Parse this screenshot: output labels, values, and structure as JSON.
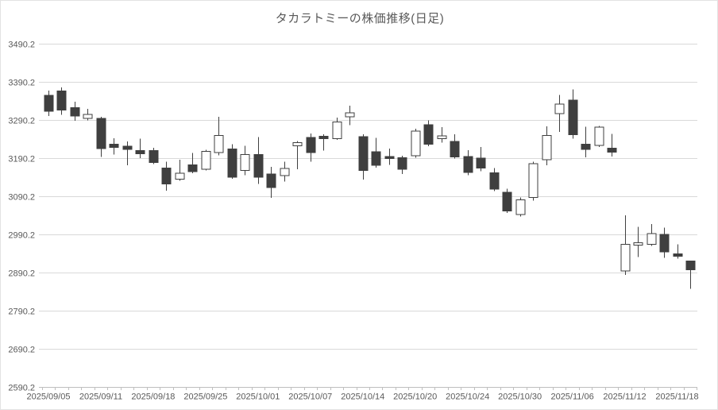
{
  "chart_data": {
    "type": "candlestick",
    "title": "タカラトミーの株価推移(日足)",
    "legend_position": "none",
    "grid": "horizontal",
    "y_axis": {
      "min": 2590.2,
      "max": 3490.2,
      "step": 100,
      "tick_labels": [
        "3490.2",
        "3390.2",
        "3290.2",
        "3190.2",
        "3090.2",
        "2990.2",
        "2890.2",
        "2790.2",
        "2690.2",
        "2590.2"
      ]
    },
    "x_axis": {
      "label_interval": 4,
      "tick_labels": [
        "2025/09/05",
        "2025/09/11",
        "2025/09/18",
        "2025/09/25",
        "2025/10/01",
        "2025/10/07",
        "2025/10/14",
        "2025/10/20",
        "2025/10/24",
        "2025/10/30",
        "2025/11/06",
        "2025/11/12",
        "2025/11/18"
      ]
    },
    "colors": {
      "up_fill": "#ffffff",
      "down_fill": "#3f3f3f",
      "candle_stroke": "#3f3f3f",
      "grid": "#d9d9d9",
      "axis": "#bfbfbf",
      "label": "#595959",
      "title": "#595959",
      "background": "#ffffff"
    },
    "candles": [
      {
        "date": "2025/09/05",
        "open": 3354,
        "high": 3366,
        "low": 3300,
        "close": 3312
      },
      {
        "date": "2025/09/08",
        "open": 3365,
        "high": 3375,
        "low": 3303,
        "close": 3315
      },
      {
        "date": "2025/09/09",
        "open": 3322,
        "high": 3337,
        "low": 3287,
        "close": 3300
      },
      {
        "date": "2025/09/10",
        "open": 3294,
        "high": 3319,
        "low": 3288,
        "close": 3304
      },
      {
        "date": "2025/09/11",
        "open": 3294,
        "high": 3298,
        "low": 3193,
        "close": 3214
      },
      {
        "date": "2025/09/12",
        "open": 3226,
        "high": 3242,
        "low": 3199,
        "close": 3218
      },
      {
        "date": "2025/09/16",
        "open": 3221,
        "high": 3233,
        "low": 3171,
        "close": 3212
      },
      {
        "date": "2025/09/17",
        "open": 3209,
        "high": 3240,
        "low": 3190,
        "close": 3201
      },
      {
        "date": "2025/09/18",
        "open": 3209,
        "high": 3217,
        "low": 3174,
        "close": 3178
      },
      {
        "date": "2025/09/19",
        "open": 3164,
        "high": 3180,
        "low": 3104,
        "close": 3122
      },
      {
        "date": "2025/09/22",
        "open": 3134,
        "high": 3185,
        "low": 3130,
        "close": 3150
      },
      {
        "date": "2025/09/24",
        "open": 3172,
        "high": 3203,
        "low": 3150,
        "close": 3154
      },
      {
        "date": "2025/09/25",
        "open": 3160,
        "high": 3211,
        "low": 3157,
        "close": 3207
      },
      {
        "date": "2025/09/26",
        "open": 3204,
        "high": 3298,
        "low": 3197,
        "close": 3249
      },
      {
        "date": "2025/09/29",
        "open": 3213,
        "high": 3226,
        "low": 3135,
        "close": 3140
      },
      {
        "date": "2025/09/30",
        "open": 3157,
        "high": 3222,
        "low": 3145,
        "close": 3199
      },
      {
        "date": "2025/10/01",
        "open": 3199,
        "high": 3245,
        "low": 3122,
        "close": 3140
      },
      {
        "date": "2025/10/02",
        "open": 3148,
        "high": 3167,
        "low": 3085,
        "close": 3112
      },
      {
        "date": "2025/10/03",
        "open": 3144,
        "high": 3180,
        "low": 3128,
        "close": 3162
      },
      {
        "date": "2025/10/06",
        "open": 3222,
        "high": 3234,
        "low": 3160,
        "close": 3230
      },
      {
        "date": "2025/10/07",
        "open": 3244,
        "high": 3254,
        "low": 3180,
        "close": 3204
      },
      {
        "date": "2025/10/08",
        "open": 3247,
        "high": 3252,
        "low": 3209,
        "close": 3240
      },
      {
        "date": "2025/10/09",
        "open": 3240,
        "high": 3296,
        "low": 3237,
        "close": 3284
      },
      {
        "date": "2025/10/10",
        "open": 3298,
        "high": 3327,
        "low": 3276,
        "close": 3308
      },
      {
        "date": "2025/10/14",
        "open": 3246,
        "high": 3252,
        "low": 3133,
        "close": 3157
      },
      {
        "date": "2025/10/15",
        "open": 3206,
        "high": 3243,
        "low": 3165,
        "close": 3171
      },
      {
        "date": "2025/10/16",
        "open": 3194,
        "high": 3214,
        "low": 3172,
        "close": 3188
      },
      {
        "date": "2025/10/17",
        "open": 3191,
        "high": 3196,
        "low": 3148,
        "close": 3160
      },
      {
        "date": "2025/10/20",
        "open": 3196,
        "high": 3267,
        "low": 3191,
        "close": 3260
      },
      {
        "date": "2025/10/21",
        "open": 3277,
        "high": 3288,
        "low": 3221,
        "close": 3226
      },
      {
        "date": "2025/10/22",
        "open": 3240,
        "high": 3271,
        "low": 3230,
        "close": 3248
      },
      {
        "date": "2025/10/23",
        "open": 3233,
        "high": 3252,
        "low": 3188,
        "close": 3193
      },
      {
        "date": "2025/10/24",
        "open": 3194,
        "high": 3210,
        "low": 3145,
        "close": 3152
      },
      {
        "date": "2025/10/27",
        "open": 3189,
        "high": 3219,
        "low": 3155,
        "close": 3164
      },
      {
        "date": "2025/10/28",
        "open": 3151,
        "high": 3164,
        "low": 3103,
        "close": 3108
      },
      {
        "date": "2025/10/29",
        "open": 3100,
        "high": 3109,
        "low": 3046,
        "close": 3051
      },
      {
        "date": "2025/10/30",
        "open": 3042,
        "high": 3086,
        "low": 3037,
        "close": 3080
      },
      {
        "date": "2025/10/31",
        "open": 3086,
        "high": 3180,
        "low": 3078,
        "close": 3175
      },
      {
        "date": "2025/11/04",
        "open": 3185,
        "high": 3273,
        "low": 3171,
        "close": 3249
      },
      {
        "date": "2025/11/05",
        "open": 3306,
        "high": 3355,
        "low": 3258,
        "close": 3331
      },
      {
        "date": "2025/11/06",
        "open": 3341,
        "high": 3369,
        "low": 3240,
        "close": 3251
      },
      {
        "date": "2025/11/07",
        "open": 3226,
        "high": 3272,
        "low": 3192,
        "close": 3212
      },
      {
        "date": "2025/11/10",
        "open": 3223,
        "high": 3274,
        "low": 3219,
        "close": 3271
      },
      {
        "date": "2025/11/11",
        "open": 3216,
        "high": 3253,
        "low": 3194,
        "close": 3205
      },
      {
        "date": "2025/11/12",
        "open": 2894,
        "high": 3040,
        "low": 2884,
        "close": 2964
      },
      {
        "date": "2025/11/13",
        "open": 2962,
        "high": 3010,
        "low": 2930,
        "close": 2968
      },
      {
        "date": "2025/11/14",
        "open": 2964,
        "high": 3017,
        "low": 2960,
        "close": 2992
      },
      {
        "date": "2025/11/17",
        "open": 2990,
        "high": 3007,
        "low": 2928,
        "close": 2944
      },
      {
        "date": "2025/11/18",
        "open": 2939,
        "high": 2964,
        "low": 2926,
        "close": 2932
      },
      {
        "date": "2025/11/19",
        "open": 2920,
        "high": 2920,
        "low": 2847,
        "close": 2897
      }
    ]
  }
}
